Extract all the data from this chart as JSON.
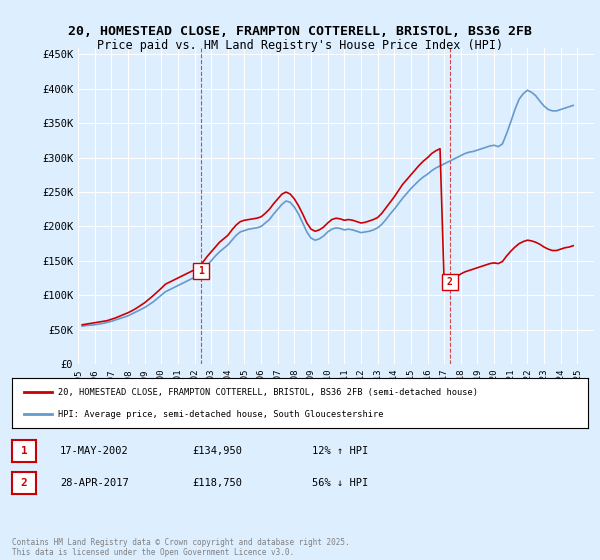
{
  "title_line1": "20, HOMESTEAD CLOSE, FRAMPTON COTTERELL, BRISTOL, BS36 2FB",
  "title_line2": "Price paid vs. HM Land Registry's House Price Index (HPI)",
  "ylabel": "",
  "ylim": [
    0,
    460000
  ],
  "yticks": [
    0,
    50000,
    100000,
    150000,
    200000,
    250000,
    300000,
    350000,
    400000,
    450000
  ],
  "ytick_labels": [
    "£0",
    "£50K",
    "£100K",
    "£150K",
    "£200K",
    "£250K",
    "£300K",
    "£350K",
    "£400K",
    "£450K"
  ],
  "xlim_start": 1995.0,
  "xlim_end": 2026.0,
  "line1_color": "#cc0000",
  "line2_color": "#6699cc",
  "background_color": "#ddeeff",
  "plot_bg_color": "#ddeeff",
  "grid_color": "#ffffff",
  "marker1_x": 2002.38,
  "marker1_y": 134950,
  "marker2_x": 2017.33,
  "marker2_y": 118750,
  "marker1_label": "1",
  "marker2_label": "2",
  "legend_line1": "20, HOMESTEAD CLOSE, FRAMPTON COTTERELL, BRISTOL, BS36 2FB (semi-detached house)",
  "legend_line2": "HPI: Average price, semi-detached house, South Gloucestershire",
  "transaction1_num": "1",
  "transaction1_date": "17-MAY-2002",
  "transaction1_price": "£134,950",
  "transaction1_hpi": "12% ↑ HPI",
  "transaction2_num": "2",
  "transaction2_date": "28-APR-2017",
  "transaction2_price": "£118,750",
  "transaction2_hpi": "56% ↓ HPI",
  "footer": "Contains HM Land Registry data © Crown copyright and database right 2025.\nThis data is licensed under the Open Government Licence v3.0.",
  "hpi_data_x": [
    1995.25,
    1995.5,
    1995.75,
    1996.0,
    1996.25,
    1996.5,
    1996.75,
    1997.0,
    1997.25,
    1997.5,
    1997.75,
    1998.0,
    1998.25,
    1998.5,
    1998.75,
    1999.0,
    1999.25,
    1999.5,
    1999.75,
    2000.0,
    2000.25,
    2000.5,
    2000.75,
    2001.0,
    2001.25,
    2001.5,
    2001.75,
    2002.0,
    2002.25,
    2002.5,
    2002.75,
    2003.0,
    2003.25,
    2003.5,
    2003.75,
    2004.0,
    2004.25,
    2004.5,
    2004.75,
    2005.0,
    2005.25,
    2005.5,
    2005.75,
    2006.0,
    2006.25,
    2006.5,
    2006.75,
    2007.0,
    2007.25,
    2007.5,
    2007.75,
    2008.0,
    2008.25,
    2008.5,
    2008.75,
    2009.0,
    2009.25,
    2009.5,
    2009.75,
    2010.0,
    2010.25,
    2010.5,
    2010.75,
    2011.0,
    2011.25,
    2011.5,
    2011.75,
    2012.0,
    2012.25,
    2012.5,
    2012.75,
    2013.0,
    2013.25,
    2013.5,
    2013.75,
    2014.0,
    2014.25,
    2014.5,
    2014.75,
    2015.0,
    2015.25,
    2015.5,
    2015.75,
    2016.0,
    2016.25,
    2016.5,
    2016.75,
    2017.0,
    2017.25,
    2017.5,
    2017.75,
    2018.0,
    2018.25,
    2018.5,
    2018.75,
    2019.0,
    2019.25,
    2019.5,
    2019.75,
    2020.0,
    2020.25,
    2020.5,
    2020.75,
    2021.0,
    2021.25,
    2021.5,
    2021.75,
    2022.0,
    2022.25,
    2022.5,
    2022.75,
    2023.0,
    2023.25,
    2023.5,
    2023.75,
    2024.0,
    2024.25,
    2024.5,
    2024.75
  ],
  "hpi_data_y": [
    55000,
    56000,
    56500,
    57000,
    58000,
    59000,
    60500,
    62000,
    64000,
    66000,
    68000,
    70000,
    73000,
    76000,
    79000,
    82000,
    86000,
    90000,
    95000,
    100000,
    105000,
    108000,
    111000,
    114000,
    117000,
    120000,
    123000,
    126000,
    130000,
    136000,
    143000,
    150000,
    157000,
    163000,
    168000,
    173000,
    180000,
    187000,
    192000,
    194000,
    196000,
    197000,
    198000,
    200000,
    205000,
    210000,
    218000,
    225000,
    232000,
    237000,
    235000,
    228000,
    218000,
    205000,
    192000,
    183000,
    180000,
    182000,
    186000,
    192000,
    196000,
    198000,
    197000,
    195000,
    196000,
    195000,
    193000,
    191000,
    192000,
    193000,
    195000,
    198000,
    203000,
    210000,
    218000,
    225000,
    233000,
    241000,
    248000,
    255000,
    261000,
    267000,
    272000,
    276000,
    281000,
    285000,
    288000,
    291000,
    294000,
    297000,
    300000,
    303000,
    306000,
    308000,
    309000,
    311000,
    313000,
    315000,
    317000,
    318000,
    316000,
    320000,
    335000,
    352000,
    370000,
    385000,
    393000,
    398000,
    395000,
    390000,
    382000,
    375000,
    370000,
    368000,
    368000,
    370000,
    372000,
    374000,
    376000
  ],
  "price_data_x": [
    1995.25,
    1995.5,
    1995.75,
    1996.0,
    1996.25,
    1996.5,
    1996.75,
    1997.0,
    1997.25,
    1997.5,
    1997.75,
    1998.0,
    1998.25,
    1998.5,
    1998.75,
    1999.0,
    1999.25,
    1999.5,
    1999.75,
    2000.0,
    2000.25,
    2000.5,
    2000.75,
    2001.0,
    2001.25,
    2001.5,
    2001.75,
    2002.0,
    2002.25,
    2002.5,
    2002.75,
    2003.0,
    2003.25,
    2003.5,
    2003.75,
    2004.0,
    2004.25,
    2004.5,
    2004.75,
    2005.0,
    2005.25,
    2005.5,
    2005.75,
    2006.0,
    2006.25,
    2006.5,
    2006.75,
    2007.0,
    2007.25,
    2007.5,
    2007.75,
    2008.0,
    2008.25,
    2008.5,
    2008.75,
    2009.0,
    2009.25,
    2009.5,
    2009.75,
    2010.0,
    2010.25,
    2010.5,
    2010.75,
    2011.0,
    2011.25,
    2011.5,
    2011.75,
    2012.0,
    2012.25,
    2012.5,
    2012.75,
    2013.0,
    2013.25,
    2013.5,
    2013.75,
    2014.0,
    2014.25,
    2014.5,
    2014.75,
    2015.0,
    2015.25,
    2015.5,
    2015.75,
    2016.0,
    2016.25,
    2016.5,
    2016.75,
    2017.0,
    2017.25,
    2017.5,
    2017.75,
    2018.0,
    2018.25,
    2018.5,
    2018.75,
    2019.0,
    2019.25,
    2019.5,
    2019.75,
    2020.0,
    2020.25,
    2020.5,
    2020.75,
    2021.0,
    2021.25,
    2021.5,
    2021.75,
    2022.0,
    2022.25,
    2022.5,
    2022.75,
    2023.0,
    2023.25,
    2023.5,
    2023.75,
    2024.0,
    2024.25,
    2024.5,
    2024.75
  ],
  "price_data_y": [
    57000,
    58000,
    59000,
    60000,
    61000,
    62000,
    63000,
    65000,
    67000,
    69500,
    72000,
    74500,
    77500,
    81000,
    85000,
    89000,
    94000,
    99000,
    104500,
    110000,
    116000,
    119000,
    122000,
    125000,
    128000,
    131000,
    134000,
    137000,
    141000,
    148000,
    156000,
    163000,
    170000,
    177000,
    182000,
    187000,
    195000,
    202000,
    207000,
    209000,
    210000,
    211000,
    212000,
    214000,
    219000,
    225000,
    233000,
    240000,
    247000,
    250000,
    247000,
    240000,
    230000,
    218000,
    205000,
    196000,
    193000,
    195000,
    199000,
    205000,
    210000,
    212000,
    211000,
    209000,
    210000,
    209000,
    207000,
    205000,
    206000,
    208000,
    210000,
    213000,
    219000,
    227000,
    235000,
    243000,
    252000,
    261000,
    268000,
    275000,
    282000,
    289000,
    295000,
    300000,
    306000,
    310000,
    313000,
    116000,
    120000,
    123000,
    127000,
    131000,
    134000,
    136000,
    138000,
    140000,
    142000,
    144000,
    146000,
    147000,
    146000,
    149000,
    157000,
    164000,
    170000,
    175000,
    178000,
    180000,
    179000,
    177000,
    174000,
    170000,
    167000,
    165000,
    165000,
    167000,
    169000,
    170000,
    172000
  ]
}
